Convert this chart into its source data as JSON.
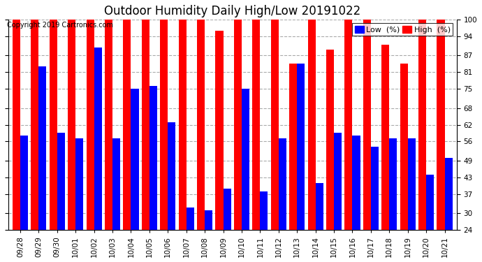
{
  "title": "Outdoor Humidity Daily High/Low 20191022",
  "copyright": "Copyright 2019 Cartronics.com",
  "legend_low": "Low  (%)",
  "legend_high": "High  (%)",
  "categories": [
    "09/28",
    "09/29",
    "09/30",
    "10/01",
    "10/02",
    "10/03",
    "10/04",
    "10/05",
    "10/06",
    "10/07",
    "10/08",
    "10/09",
    "10/10",
    "10/11",
    "10/12",
    "10/13",
    "10/14",
    "10/15",
    "10/16",
    "10/17",
    "10/18",
    "10/19",
    "10/20",
    "10/21"
  ],
  "high_values": [
    100,
    100,
    100,
    100,
    100,
    100,
    100,
    100,
    100,
    100,
    100,
    96,
    100,
    100,
    100,
    84,
    100,
    89,
    100,
    100,
    91,
    84,
    100,
    100
  ],
  "low_values": [
    58,
    83,
    59,
    57,
    90,
    57,
    75,
    76,
    63,
    32,
    31,
    39,
    75,
    38,
    57,
    84,
    41,
    59,
    58,
    54,
    57,
    57,
    44,
    50
  ],
  "high_color": "#ff0000",
  "low_color": "#0000ff",
  "bg_color": "#ffffff",
  "plot_bg_color": "#ffffff",
  "ylim_min": 24,
  "ylim_max": 100,
  "yticks": [
    24,
    30,
    37,
    43,
    49,
    56,
    62,
    68,
    75,
    81,
    87,
    94,
    100
  ],
  "grid_color": "#aaaaaa",
  "bar_width": 0.42,
  "title_fontsize": 12,
  "tick_fontsize": 7.5,
  "legend_fontsize": 8
}
